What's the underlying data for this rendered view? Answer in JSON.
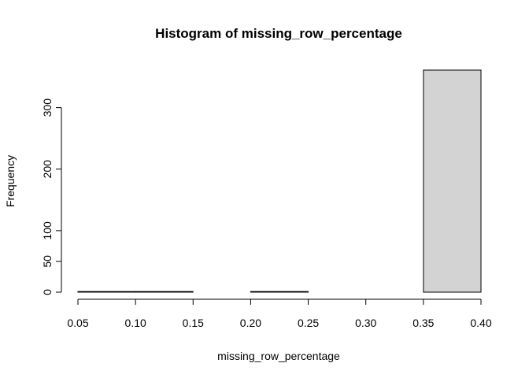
{
  "chart_data": {
    "type": "bar",
    "title": "Histogram of missing_row_percentage",
    "xlabel": "missing_row_percentage",
    "ylabel": "Frequency",
    "bins": [
      {
        "x0": 0.05,
        "x1": 0.1,
        "count": 1
      },
      {
        "x0": 0.1,
        "x1": 0.15,
        "count": 1
      },
      {
        "x0": 0.15,
        "x1": 0.2,
        "count": 0
      },
      {
        "x0": 0.2,
        "x1": 0.25,
        "count": 1
      },
      {
        "x0": 0.25,
        "x1": 0.3,
        "count": 0
      },
      {
        "x0": 0.3,
        "x1": 0.35,
        "count": 0
      },
      {
        "x0": 0.35,
        "x1": 0.4,
        "count": 361
      }
    ],
    "xticks": [
      "0.05",
      "0.10",
      "0.15",
      "0.20",
      "0.25",
      "0.30",
      "0.35",
      "0.40"
    ],
    "yticks": [
      "0",
      "50",
      "100",
      "200",
      "300"
    ],
    "xlim": [
      0.05,
      0.4
    ],
    "ylim": [
      0,
      361
    ],
    "bar_color": "#d3d3d3",
    "grid": false,
    "legend": "none"
  }
}
